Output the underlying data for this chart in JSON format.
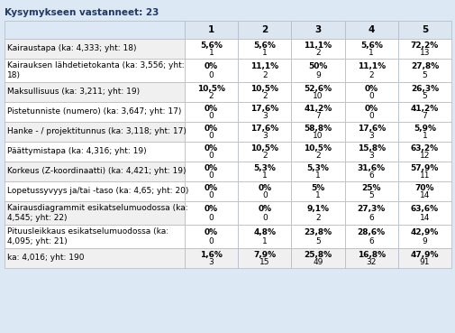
{
  "title": "Kysymykseen vastanneet: 23",
  "col_headers": [
    "1",
    "2",
    "3",
    "4",
    "5"
  ],
  "rows": [
    {
      "label": "Kairaustapa (ka: 4,333; yht: 18)",
      "pct": [
        "5,6%",
        "5,6%",
        "11,1%",
        "5,6%",
        "72,2%"
      ],
      "cnt": [
        "1",
        "1",
        "2",
        "1",
        "13"
      ],
      "two_line": false
    },
    {
      "label": "Kairauksen lähdetietokanta (ka: 3,556; yht:\n18)",
      "pct": [
        "0%",
        "11,1%",
        "50%",
        "11,1%",
        "27,8%"
      ],
      "cnt": [
        "0",
        "2",
        "9",
        "2",
        "5"
      ],
      "two_line": true
    },
    {
      "label": "Maksullisuus (ka: 3,211; yht: 19)",
      "pct": [
        "10,5%",
        "10,5%",
        "52,6%",
        "0%",
        "26,3%"
      ],
      "cnt": [
        "2",
        "2",
        "10",
        "0",
        "5"
      ],
      "two_line": false
    },
    {
      "label": "Pistetunniste (numero) (ka: 3,647; yht: 17)",
      "pct": [
        "0%",
        "17,6%",
        "41,2%",
        "0%",
        "41,2%"
      ],
      "cnt": [
        "0",
        "3",
        "7",
        "0",
        "7"
      ],
      "two_line": false
    },
    {
      "label": "Hanke - / projektitunnus (ka: 3,118; yht: 17)",
      "pct": [
        "0%",
        "17,6%",
        "58,8%",
        "17,6%",
        "5,9%"
      ],
      "cnt": [
        "0",
        "3",
        "10",
        "3",
        "1"
      ],
      "two_line": false
    },
    {
      "label": "Päättymistapa (ka: 4,316; yht: 19)",
      "pct": [
        "0%",
        "10,5%",
        "10,5%",
        "15,8%",
        "63,2%"
      ],
      "cnt": [
        "0",
        "2",
        "2",
        "3",
        "12"
      ],
      "two_line": false
    },
    {
      "label": "Korkeus (Z-koordinaatti) (ka: 4,421; yht: 19)",
      "pct": [
        "0%",
        "5,3%",
        "5,3%",
        "31,6%",
        "57,9%"
      ],
      "cnt": [
        "0",
        "1",
        "1",
        "6",
        "11"
      ],
      "two_line": false
    },
    {
      "label": "Lopetussyvyys ja/tai -taso (ka: 4,65; yht: 20)",
      "pct": [
        "0%",
        "0%",
        "5%",
        "25%",
        "70%"
      ],
      "cnt": [
        "0",
        "0",
        "1",
        "5",
        "14"
      ],
      "two_line": false
    },
    {
      "label": "Kairausdiagrammit esikatselumuodossa (ka:\n4,545; yht: 22)",
      "pct": [
        "0%",
        "0%",
        "9,1%",
        "27,3%",
        "63,6%"
      ],
      "cnt": [
        "0",
        "0",
        "2",
        "6",
        "14"
      ],
      "two_line": true
    },
    {
      "label": "Pituusleikkaus esikatselumuodossa (ka:\n4,095; yht: 21)",
      "pct": [
        "0%",
        "4,8%",
        "23,8%",
        "28,6%",
        "42,9%"
      ],
      "cnt": [
        "0",
        "1",
        "5",
        "6",
        "9"
      ],
      "two_line": true
    }
  ],
  "footer_label": "ka: 4,016; yht: 190",
  "footer_pct": [
    "1,6%",
    "7,9%",
    "25,8%",
    "16,8%",
    "47,9%"
  ],
  "footer_cnt": [
    "3",
    "15",
    "49",
    "32",
    "91"
  ],
  "fig_bg": "#dce9f5",
  "header_bg": "#dce6f1",
  "row_bg_odd": "#f0f0f0",
  "row_bg_even": "#ffffff",
  "border_color": "#b0b8c8",
  "text_color": "#000000",
  "title_color": "#1f3864",
  "header_text_color": "#000000",
  "footer_bg": "#f0f0f0",
  "cell_bg_white": "#ffffff",
  "title_fontsize": 7.5,
  "header_fontsize": 7.5,
  "cell_fontsize": 6.5,
  "label_fontsize": 6.5,
  "footer_fontsize": 6.5
}
